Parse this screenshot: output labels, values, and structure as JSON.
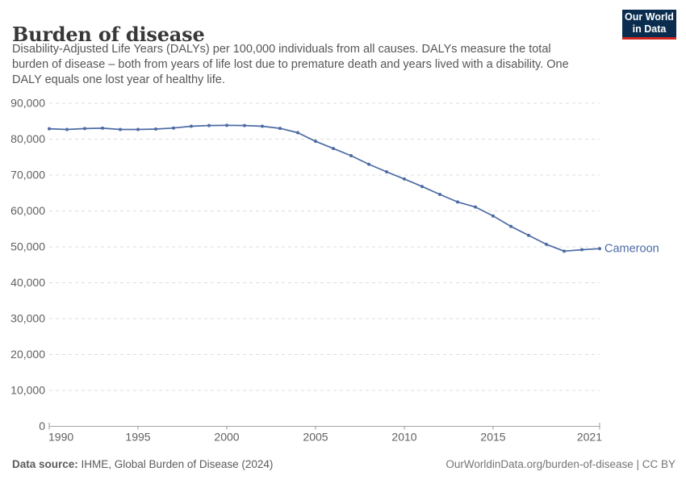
{
  "header": {
    "title": "Burden of disease",
    "subtitle_lines": [
      "Disability-Adjusted Life Years (DALYs) per 100,000 individuals from all causes. DALYs measure the total",
      "burden of disease – both from years of life lost due to premature death and years lived with a disability. One",
      "DALY equals one lost year of healthy life."
    ],
    "logo": {
      "line1": "Our World",
      "line2": "in Data"
    }
  },
  "chart_data": {
    "type": "line",
    "title": "Burden of disease",
    "xlabel": "",
    "ylabel": "DALYs per 100,000 individuals",
    "xlim": [
      1990,
      2021
    ],
    "ylim": [
      0,
      90000
    ],
    "x_ticks": [
      1990,
      1995,
      2000,
      2005,
      2010,
      2015,
      2021
    ],
    "y_ticks": [
      0,
      10000,
      20000,
      30000,
      40000,
      50000,
      60000,
      70000,
      80000,
      90000
    ],
    "grid": "horizontal-dashed",
    "legend_position": "end-of-line-label",
    "series": [
      {
        "name": "Cameroon",
        "color": "#4C6BA4",
        "x": [
          1990,
          1991,
          1992,
          1993,
          1994,
          1995,
          1996,
          1997,
          1998,
          1999,
          2000,
          2001,
          2002,
          2003,
          2004,
          2005,
          2006,
          2007,
          2008,
          2009,
          2010,
          2011,
          2012,
          2013,
          2014,
          2015,
          2016,
          2017,
          2018,
          2019,
          2020,
          2021
        ],
        "values": [
          82900,
          82700,
          82950,
          83050,
          82700,
          82700,
          82800,
          83100,
          83600,
          83800,
          83850,
          83800,
          83600,
          83000,
          81800,
          79400,
          77400,
          75400,
          73000,
          70900,
          68900,
          66800,
          64600,
          62500,
          61100,
          58600,
          55700,
          53200,
          50700,
          48800,
          49200,
          49500
        ]
      }
    ]
  },
  "footer": {
    "source_label": "Data source:",
    "source_text": " IHME, Global Burden of Disease (2024)",
    "link_text": "OurWorldinData.org/burden-of-disease | CC BY"
  },
  "colors": {
    "series_blue": "#4C6BA4",
    "grid": "#dcdcdc",
    "axis_line": "#a5a5a5",
    "tick": "#999999",
    "axis_text": "#606060",
    "logo_bg": "#0A2D4F",
    "logo_bar": "#CE261E"
  }
}
